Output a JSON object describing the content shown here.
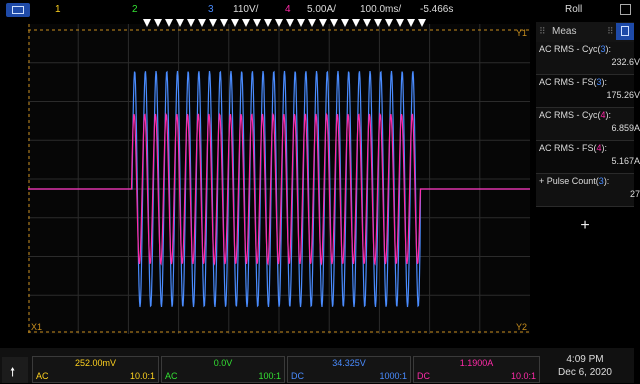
{
  "colors": {
    "ch1": "#ffd21f",
    "ch2": "#33e033",
    "ch3": "#4a8cff",
    "ch4": "#ff2aa8",
    "accent": "#1e4aa8"
  },
  "top": {
    "ch1": "1",
    "ch2": "2",
    "ch3": "3",
    "ch3_scale": "110V/",
    "ch4": "4",
    "ch4_scale": "5.00A/",
    "timebase": "100.0ms/",
    "delay": "-5.466s",
    "mode": "Roll"
  },
  "markers": {
    "y1": "Y1",
    "x1": "X1",
    "y2": "Y2"
  },
  "meas": {
    "title": "Meas",
    "items": [
      {
        "pre": "AC RMS - Cyc(",
        "ch": "3",
        "post": "):",
        "value": "232.6V"
      },
      {
        "pre": "AC RMS - FS(",
        "ch": "3",
        "post": "):",
        "value": "175.26V"
      },
      {
        "pre": "AC RMS - Cyc(",
        "ch": "4",
        "post": "):",
        "value": "6.859A"
      },
      {
        "pre": "AC RMS - FS(",
        "ch": "4",
        "post": "):",
        "value": "5.167A"
      },
      {
        "pre": "+ Pulse Count(",
        "ch": "3",
        "post": "):",
        "value": "27"
      }
    ],
    "add": "+"
  },
  "channels": [
    {
      "value": "252.00mV",
      "coupling": "AC",
      "probe": "10.0:1"
    },
    {
      "value": "0.0V",
      "coupling": "AC",
      "probe": "100:1"
    },
    {
      "value": "34.325V",
      "coupling": "DC",
      "probe": "1000:1"
    },
    {
      "value": "1.1900A",
      "coupling": "DC",
      "probe": "10.0:1"
    }
  ],
  "clock": {
    "time": "4:09 PM",
    "date": "Dec 6, 2020"
  }
}
